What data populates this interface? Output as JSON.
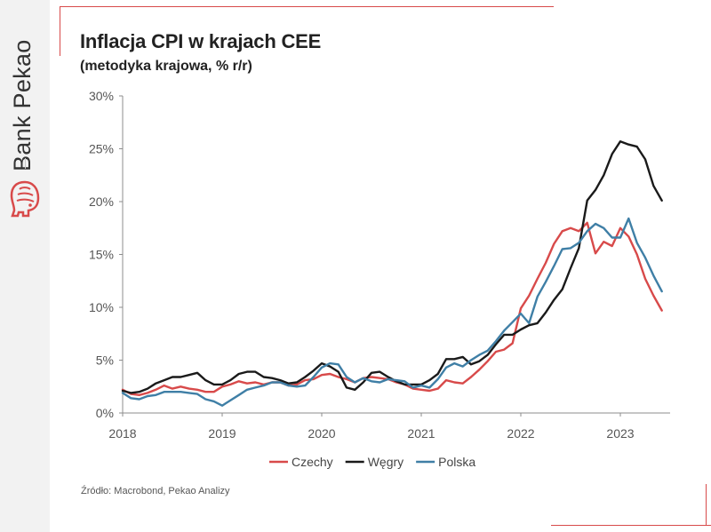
{
  "brand": {
    "name": "Bank Pekao",
    "logo_icon": "bison-icon",
    "accent_color": "#d84a4a"
  },
  "title": "Inflacja CPI w krajach CEE",
  "subtitle": "(metodyka krajowa, % r/r)",
  "source": "Źródło: Macrobond, Pekao Analizy",
  "chart_data": {
    "type": "line",
    "title": "Inflacja CPI w krajach CEE",
    "subtitle": "(metodyka krajowa, % r/r)",
    "xlabel": "",
    "ylabel": "",
    "x_start": "2018-01",
    "x_frequency": "monthly",
    "x_ticks": [
      "2018",
      "2019",
      "2020",
      "2021",
      "2022",
      "2023"
    ],
    "x_range": [
      "2018-01",
      "2023-06"
    ],
    "y_ticks": [
      "0%",
      "5%",
      "10%",
      "15%",
      "20%",
      "25%",
      "30%"
    ],
    "ylim": [
      0,
      30
    ],
    "grid": false,
    "legend_position": "bottom",
    "series": [
      {
        "name": "Czechy",
        "color": "#d84a4a",
        "values": [
          2.2,
          1.8,
          1.7,
          1.9,
          2.2,
          2.6,
          2.3,
          2.5,
          2.3,
          2.2,
          2.0,
          2.0,
          2.5,
          2.7,
          3.0,
          2.8,
          2.9,
          2.7,
          2.9,
          2.9,
          2.6,
          2.7,
          3.1,
          3.2,
          3.6,
          3.7,
          3.4,
          3.2,
          2.9,
          3.3,
          3.4,
          3.3,
          3.2,
          2.9,
          2.7,
          2.3,
          2.2,
          2.1,
          2.3,
          3.1,
          2.9,
          2.8,
          3.4,
          4.1,
          4.9,
          5.8,
          6.0,
          6.6,
          9.9,
          11.1,
          12.7,
          14.2,
          16.0,
          17.2,
          17.5,
          17.2,
          18.0,
          15.1,
          16.2,
          15.8,
          17.5,
          16.7,
          15.0,
          12.7,
          11.1,
          9.7
        ]
      },
      {
        "name": "Węgry",
        "color": "#1a1a1a",
        "values": [
          2.1,
          1.9,
          2.0,
          2.3,
          2.8,
          3.1,
          3.4,
          3.4,
          3.6,
          3.8,
          3.1,
          2.7,
          2.7,
          3.1,
          3.7,
          3.9,
          3.9,
          3.4,
          3.3,
          3.1,
          2.8,
          2.9,
          3.4,
          4.0,
          4.7,
          4.4,
          3.9,
          2.4,
          2.2,
          2.9,
          3.8,
          3.9,
          3.4,
          3.0,
          2.7,
          2.7,
          2.7,
          3.1,
          3.7,
          5.1,
          5.1,
          5.3,
          4.6,
          4.9,
          5.5,
          6.5,
          7.4,
          7.4,
          7.9,
          8.3,
          8.5,
          9.5,
          10.7,
          11.7,
          13.7,
          15.6,
          20.1,
          21.1,
          22.5,
          24.5,
          25.7,
          25.4,
          25.2,
          24.0,
          21.5,
          20.1
        ]
      },
      {
        "name": "Polska",
        "color": "#3f7fa6",
        "values": [
          1.9,
          1.4,
          1.3,
          1.6,
          1.7,
          2.0,
          2.0,
          2.0,
          1.9,
          1.8,
          1.3,
          1.1,
          0.7,
          1.2,
          1.7,
          2.2,
          2.4,
          2.6,
          2.9,
          2.9,
          2.6,
          2.5,
          2.6,
          3.4,
          4.3,
          4.7,
          4.6,
          3.4,
          2.9,
          3.3,
          3.0,
          2.9,
          3.2,
          3.1,
          3.0,
          2.4,
          2.6,
          2.4,
          3.2,
          4.3,
          4.7,
          4.4,
          5.0,
          5.5,
          5.9,
          6.8,
          7.8,
          8.6,
          9.4,
          8.5,
          11.0,
          12.4,
          13.9,
          15.5,
          15.6,
          16.1,
          17.2,
          17.9,
          17.5,
          16.6,
          16.6,
          18.4,
          16.1,
          14.7,
          13.0,
          11.5
        ]
      }
    ]
  }
}
